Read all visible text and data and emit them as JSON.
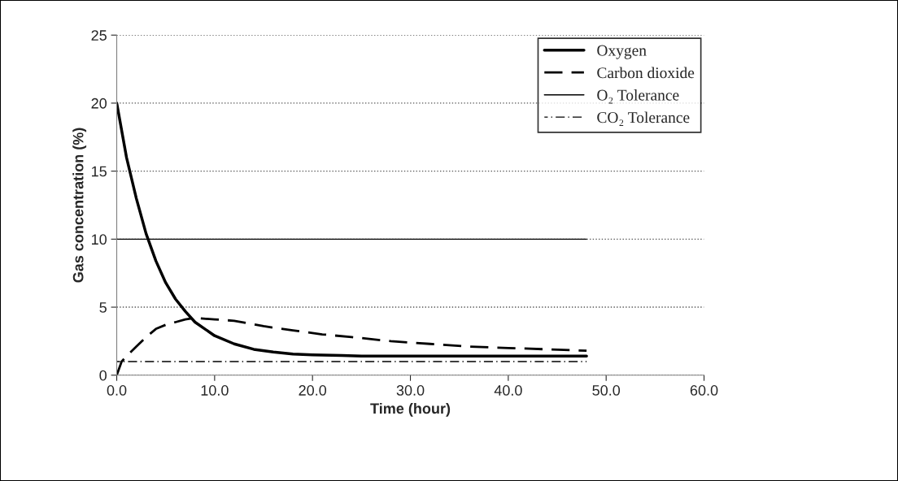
{
  "chart_data": {
    "type": "line",
    "xlabel": "Time (hour)",
    "ylabel": "Gas concentration (%)",
    "xlim": [
      0,
      60
    ],
    "ylim": [
      0,
      25
    ],
    "xticks": [
      {
        "value": 0,
        "label": "0.0"
      },
      {
        "value": 10,
        "label": "10.0"
      },
      {
        "value": 20,
        "label": "20.0"
      },
      {
        "value": 30,
        "label": "30.0"
      },
      {
        "value": 40,
        "label": "40.0"
      },
      {
        "value": 50,
        "label": "50.0"
      },
      {
        "value": 60,
        "label": "60.0"
      }
    ],
    "yticks": [
      0,
      5,
      10,
      15,
      20,
      25
    ],
    "grid": "y",
    "legend": "top right",
    "marker": "none",
    "series": [
      {
        "name": "Oxygen",
        "color": "#000000",
        "line_style": "solid",
        "x": [
          0,
          1,
          2,
          3,
          4,
          5,
          6,
          7,
          8,
          9,
          10,
          12,
          14,
          16,
          18,
          20,
          23,
          25,
          30,
          40,
          48
        ],
        "values": [
          20,
          16.0,
          13.0,
          10.4,
          8.4,
          6.8,
          5.6,
          4.7,
          3.9,
          3.4,
          2.9,
          2.3,
          1.9,
          1.7,
          1.55,
          1.5,
          1.45,
          1.4,
          1.4,
          1.4,
          1.4
        ]
      },
      {
        "name": "Carbon dioxide",
        "color": "#000000",
        "line_style": "dashed",
        "x": [
          0,
          0.5,
          1,
          2,
          3,
          4,
          5,
          6,
          7,
          8,
          10,
          12,
          15,
          18,
          21,
          24,
          28,
          32,
          36,
          40,
          44,
          48
        ],
        "values": [
          0,
          1.0,
          1.4,
          2.1,
          2.8,
          3.4,
          3.7,
          3.9,
          4.1,
          4.2,
          4.1,
          4.0,
          3.6,
          3.3,
          3.0,
          2.8,
          2.5,
          2.3,
          2.1,
          2.0,
          1.9,
          1.8
        ]
      },
      {
        "name": "O₂ Tolerance",
        "color": "#000000",
        "line_style": "solid",
        "x": [
          0,
          48
        ],
        "values": [
          10,
          10
        ]
      },
      {
        "name": "CO₂ Tolerance",
        "color": "#000000",
        "line_style": "dashdot",
        "x": [
          0,
          48
        ],
        "values": [
          1,
          1
        ]
      }
    ]
  }
}
